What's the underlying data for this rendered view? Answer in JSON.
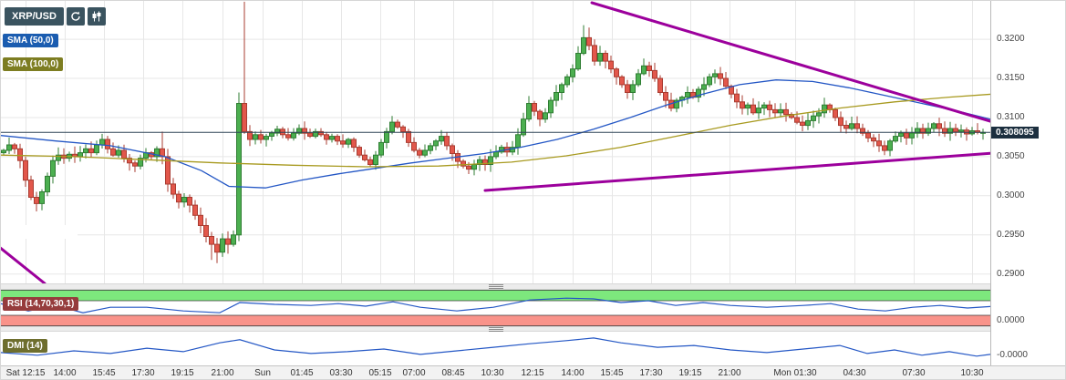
{
  "header": {
    "symbol": "XRP/USD"
  },
  "legend": {
    "sma50": "SMA (50,0)",
    "sma100": "SMA (100,0)"
  },
  "panels": {
    "rsi_label": "RSI (14,70,30,1)",
    "dmi_label": "DMI (14)"
  },
  "price_axis": {
    "ticks": [
      {
        "label": "0.3200",
        "value": 0.32
      },
      {
        "label": "0.3150",
        "value": 0.315
      },
      {
        "label": "0.3100",
        "value": 0.31
      },
      {
        "label": "0.3050",
        "value": 0.305
      },
      {
        "label": "0.3000",
        "value": 0.3
      },
      {
        "label": "0.2950",
        "value": 0.295
      },
      {
        "label": "0.2900",
        "value": 0.29
      }
    ],
    "last_price_label": "0.308095",
    "rsi_value_label": "0.0000",
    "dmi_value_label": "-0.0000"
  },
  "time_axis": [
    {
      "label": "Sat 12:15",
      "x": 27
    },
    {
      "label": "14:00",
      "x": 70
    },
    {
      "label": "15:45",
      "x": 113
    },
    {
      "label": "17:30",
      "x": 156
    },
    {
      "label": "19:15",
      "x": 199
    },
    {
      "label": "21:00",
      "x": 243
    },
    {
      "label": "Sun",
      "x": 287
    },
    {
      "label": "01:45",
      "x": 330
    },
    {
      "label": "03:30",
      "x": 373
    },
    {
      "label": "05:15",
      "x": 416
    },
    {
      "label": "07:00",
      "x": 453
    },
    {
      "label": "08:45",
      "x": 496
    },
    {
      "label": "10:30",
      "x": 539
    },
    {
      "label": "12:15",
      "x": 583
    },
    {
      "label": "14:00",
      "x": 627
    },
    {
      "label": "15:45",
      "x": 670
    },
    {
      "label": "17:30",
      "x": 713
    },
    {
      "label": "19:15",
      "x": 756
    },
    {
      "label": "21:00",
      "x": 799
    },
    {
      "label": "Mon 01:30",
      "x": 871
    },
    {
      "label": "04:30",
      "x": 936
    },
    {
      "label": "07:30",
      "x": 1001
    },
    {
      "label": "10:30",
      "x": 1065
    }
  ],
  "colors": {
    "up": "#4caf50",
    "up_border": "#2f7d33",
    "down": "#e2574b",
    "down_border": "#a93c31",
    "sma50": "#2457c5",
    "sma100": "#a89a20",
    "trend": "#9c009c",
    "price_line": "#2e4457",
    "grid": "#e7e7e7",
    "rsi_green": "#7de87d",
    "rsi_red": "#f9938a",
    "indicator": "#2457c5",
    "band_edge": "#3c3c3c"
  },
  "chart_data": {
    "type": "candlestick",
    "symbol": "XRP/USD",
    "interval_minutes": 15,
    "last_price": 0.308095,
    "price_range": {
      "top": 0.3249,
      "bottom": 0.2888
    },
    "y_ticks": [
      0.32,
      0.315,
      0.31,
      0.305,
      0.3,
      0.295,
      0.29
    ],
    "open_first": 0.3055,
    "closes": [
      0.3058,
      0.3065,
      0.306,
      0.3045,
      0.302,
      0.2998,
      0.299,
      0.3005,
      0.3025,
      0.3045,
      0.3052,
      0.3048,
      0.3053,
      0.305,
      0.3055,
      0.306,
      0.3055,
      0.3065,
      0.3072,
      0.306,
      0.3052,
      0.3058,
      0.3048,
      0.3042,
      0.3038,
      0.3048,
      0.3055,
      0.305,
      0.306,
      0.305,
      0.3015,
      0.3002,
      0.2992,
      0.2998,
      0.2988,
      0.2975,
      0.2962,
      0.2948,
      0.2938,
      0.2928,
      0.2945,
      0.2938,
      0.295,
      0.3118,
      0.3082,
      0.3072,
      0.3078,
      0.3072,
      0.3076,
      0.308,
      0.3085,
      0.3078,
      0.3074,
      0.308,
      0.3086,
      0.308,
      0.3076,
      0.3082,
      0.3078,
      0.3072,
      0.3076,
      0.307,
      0.3066,
      0.3072,
      0.3062,
      0.3052,
      0.3046,
      0.304,
      0.3052,
      0.3068,
      0.3082,
      0.3094,
      0.3088,
      0.3082,
      0.3068,
      0.3058,
      0.3052,
      0.3058,
      0.3064,
      0.307,
      0.3076,
      0.3064,
      0.3054,
      0.3044,
      0.3038,
      0.3034,
      0.304,
      0.3046,
      0.304,
      0.305,
      0.3056,
      0.3062,
      0.3056,
      0.3062,
      0.3078,
      0.3098,
      0.3118,
      0.3108,
      0.3098,
      0.3106,
      0.3122,
      0.3132,
      0.3142,
      0.3152,
      0.3162,
      0.3182,
      0.3202,
      0.3192,
      0.3172,
      0.3182,
      0.3172,
      0.3162,
      0.3152,
      0.3142,
      0.3132,
      0.3142,
      0.3156,
      0.3166,
      0.316,
      0.315,
      0.3132,
      0.3122,
      0.3112,
      0.3122,
      0.3126,
      0.3132,
      0.3126,
      0.3136,
      0.3142,
      0.3152,
      0.3156,
      0.315,
      0.314,
      0.313,
      0.312,
      0.3112,
      0.3116,
      0.3106,
      0.3112,
      0.3116,
      0.311,
      0.3106,
      0.311,
      0.3104,
      0.31,
      0.3094,
      0.309,
      0.3096,
      0.3102,
      0.3106,
      0.3116,
      0.311,
      0.31,
      0.309,
      0.3086,
      0.3092,
      0.3086,
      0.308,
      0.3074,
      0.307,
      0.3064,
      0.3058,
      0.307,
      0.3076,
      0.308,
      0.3074,
      0.308,
      0.3086,
      0.308,
      0.3086,
      0.3092,
      0.3086,
      0.308,
      0.3086,
      0.3082,
      0.3084,
      0.3079,
      0.3083,
      0.3081,
      0.3081
    ],
    "wick_overrides": {
      "29": {
        "h": 0.3082
      },
      "30": {
        "l": 0.3005
      },
      "36": {
        "l": 0.2952
      },
      "38": {
        "l": 0.2918
      },
      "39": {
        "l": 0.2914
      },
      "41": {
        "l": 0.2926
      },
      "43": {
        "h": 0.3132,
        "l": 0.2942
      },
      "44": {
        "h": 0.3248
      },
      "71": {
        "h": 0.3102
      },
      "106": {
        "h": 0.3218
      },
      "107": {
        "h": 0.3215
      }
    },
    "sma50": [
      [
        0,
        0.3077
      ],
      [
        60,
        0.307
      ],
      [
        120,
        0.3064
      ],
      [
        180,
        0.305
      ],
      [
        220,
        0.3032
      ],
      [
        250,
        0.3012
      ],
      [
        290,
        0.301
      ],
      [
        330,
        0.302
      ],
      [
        370,
        0.3028
      ],
      [
        410,
        0.3035
      ],
      [
        450,
        0.3042
      ],
      [
        490,
        0.3048
      ],
      [
        530,
        0.3054
      ],
      [
        570,
        0.3062
      ],
      [
        610,
        0.3072
      ],
      [
        650,
        0.3085
      ],
      [
        690,
        0.31
      ],
      [
        730,
        0.3116
      ],
      [
        770,
        0.313
      ],
      [
        810,
        0.3142
      ],
      [
        850,
        0.3148
      ],
      [
        890,
        0.3146
      ],
      [
        930,
        0.3138
      ],
      [
        970,
        0.3128
      ],
      [
        1010,
        0.3118
      ],
      [
        1050,
        0.3108
      ],
      [
        1088,
        0.3097
      ]
    ],
    "sma100": [
      [
        0,
        0.3052
      ],
      [
        80,
        0.305
      ],
      [
        160,
        0.3046
      ],
      [
        240,
        0.3042
      ],
      [
        320,
        0.3039
      ],
      [
        400,
        0.3037
      ],
      [
        480,
        0.3038
      ],
      [
        560,
        0.3043
      ],
      [
        620,
        0.3051
      ],
      [
        680,
        0.3062
      ],
      [
        740,
        0.3076
      ],
      [
        800,
        0.309
      ],
      [
        860,
        0.3102
      ],
      [
        920,
        0.3112
      ],
      [
        980,
        0.312
      ],
      [
        1040,
        0.3126
      ],
      [
        1088,
        0.313
      ]
    ],
    "trendlines": [
      {
        "x1": 648,
        "y1": 2,
        "x2": 1088,
        "y2": 133
      },
      {
        "x1": 531,
        "y1": 208,
        "x2": 1088,
        "y2": 167
      },
      {
        "x1": -2,
        "y1": 270,
        "x2": 48,
        "y2": 310
      }
    ],
    "rsi": {
      "range": [
        0,
        100
      ],
      "upper_band": [
        70,
        100
      ],
      "lower_band": [
        0,
        30
      ],
      "points": [
        [
          0,
          62
        ],
        [
          30,
          42
        ],
        [
          60,
          57
        ],
        [
          90,
          37
        ],
        [
          120,
          52
        ],
        [
          160,
          52
        ],
        [
          200,
          42
        ],
        [
          240,
          37
        ],
        [
          262,
          65
        ],
        [
          300,
          60
        ],
        [
          340,
          57
        ],
        [
          370,
          62
        ],
        [
          400,
          55
        ],
        [
          430,
          67
        ],
        [
          460,
          52
        ],
        [
          500,
          42
        ],
        [
          540,
          52
        ],
        [
          580,
          72
        ],
        [
          620,
          77
        ],
        [
          650,
          75
        ],
        [
          680,
          65
        ],
        [
          710,
          70
        ],
        [
          740,
          57
        ],
        [
          770,
          65
        ],
        [
          800,
          57
        ],
        [
          840,
          52
        ],
        [
          880,
          57
        ],
        [
          910,
          62
        ],
        [
          940,
          47
        ],
        [
          970,
          42
        ],
        [
          1000,
          52
        ],
        [
          1030,
          57
        ],
        [
          1060,
          50
        ],
        [
          1085,
          54
        ]
      ]
    },
    "dmi": {
      "range": [
        0,
        70
      ],
      "points": [
        [
          0,
          29
        ],
        [
          40,
          23
        ],
        [
          80,
          33
        ],
        [
          120,
          27
        ],
        [
          160,
          39
        ],
        [
          200,
          31
        ],
        [
          240,
          51
        ],
        [
          262,
          58
        ],
        [
          300,
          35
        ],
        [
          340,
          27
        ],
        [
          380,
          31
        ],
        [
          420,
          37
        ],
        [
          460,
          25
        ],
        [
          500,
          33
        ],
        [
          540,
          41
        ],
        [
          580,
          49
        ],
        [
          620,
          56
        ],
        [
          650,
          62
        ],
        [
          680,
          51
        ],
        [
          720,
          41
        ],
        [
          760,
          45
        ],
        [
          800,
          35
        ],
        [
          840,
          29
        ],
        [
          880,
          37
        ],
        [
          920,
          45
        ],
        [
          950,
          27
        ],
        [
          980,
          35
        ],
        [
          1010,
          23
        ],
        [
          1040,
          31
        ],
        [
          1070,
          21
        ],
        [
          1085,
          25
        ]
      ]
    }
  }
}
